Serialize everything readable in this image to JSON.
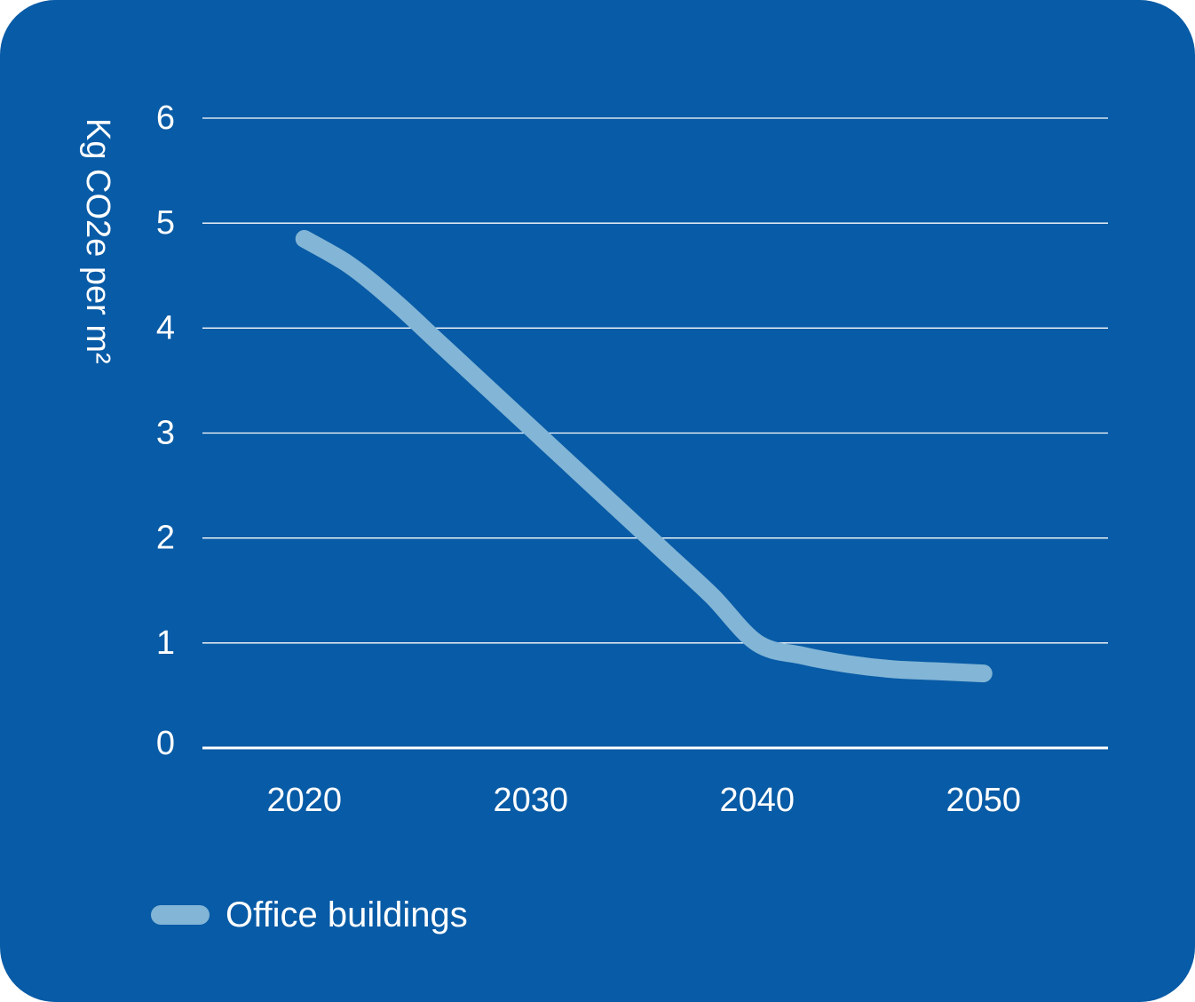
{
  "chart_data": {
    "type": "line",
    "title": "",
    "xlabel": "",
    "ylabel": "Kg CO2e per m²",
    "ylim": [
      0,
      6
    ],
    "yticks": [
      0,
      1,
      2,
      3,
      4,
      5,
      6
    ],
    "xticks": [
      2020,
      2030,
      2040,
      2050
    ],
    "xlim": [
      2015.5,
      2055.5
    ],
    "grid": true,
    "legend_position": "bottom-left",
    "series": [
      {
        "name": "Office buildings",
        "color": "#82b5d6",
        "x": [
          2020,
          2022,
          2024,
          2026,
          2028,
          2030,
          2032,
          2034,
          2036,
          2038,
          2040,
          2042,
          2044,
          2046,
          2048,
          2050
        ],
        "y": [
          4.85,
          4.6,
          4.25,
          3.85,
          3.45,
          3.05,
          2.65,
          2.25,
          1.85,
          1.45,
          1.0,
          0.88,
          0.8,
          0.75,
          0.73,
          0.71
        ]
      }
    ]
  },
  "colors": {
    "background": "#085ba6",
    "gridline": "#ffffff",
    "line": "#82b5d6"
  }
}
